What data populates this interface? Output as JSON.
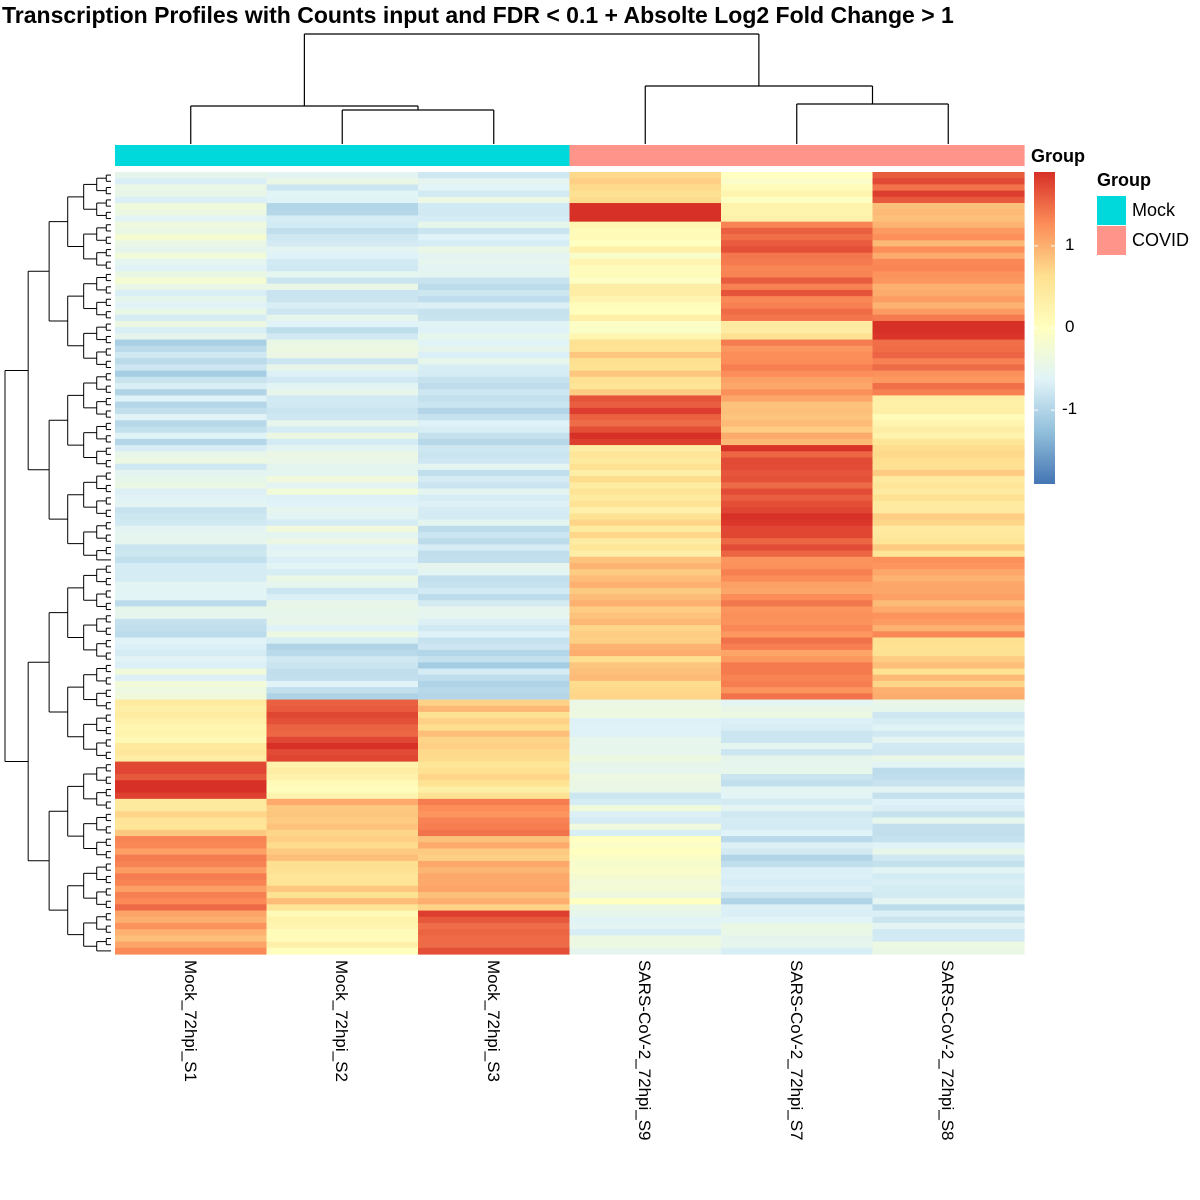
{
  "chart_data": {
    "type": "heatmap",
    "title": "Transcription Profiles with Counts input and FDR < 0.1 + Absolte Log2 Fold Change > 1",
    "columns": [
      "Mock_72hpi_S1",
      "Mock_72hpi_S2",
      "Mock_72hpi_S3",
      "SARS-CoV-2_72hpi_S9",
      "SARS-CoV-2_72hpi_S7",
      "SARS-CoV-2_72hpi_S8"
    ],
    "column_groups": [
      "Mock",
      "Mock",
      "Mock",
      "COVID",
      "COVID",
      "COVID"
    ],
    "annotation_title": "Group",
    "legend": {
      "title": "Group",
      "entries": [
        {
          "label": "Mock",
          "color": "#00D9DC"
        },
        {
          "label": "COVID",
          "color": "#FF948A"
        }
      ]
    },
    "color_scale": {
      "ticks": [
        "1",
        "0",
        "-1"
      ],
      "range": [
        -1.9,
        1.9
      ],
      "colors": [
        "#4575B4",
        "#91BFDB",
        "#E0F3F8",
        "#FFFFBF",
        "#FEE090",
        "#FC8D59",
        "#D73027"
      ]
    },
    "row_blocks": [
      {
        "rows": 5,
        "values": [
          -0.5,
          -0.6,
          -0.6,
          0.8,
          0.0,
          1.6
        ]
      },
      {
        "rows": 3,
        "values": [
          -0.4,
          -0.9,
          -0.6,
          1.8,
          0.3,
          1.0
        ]
      },
      {
        "rows": 10,
        "values": [
          -0.4,
          -0.7,
          -0.6,
          0.1,
          1.5,
          1.1
        ]
      },
      {
        "rows": 6,
        "values": [
          -0.5,
          -0.6,
          -0.8,
          0.2,
          1.5,
          1.2
        ]
      },
      {
        "rows": 3,
        "values": [
          -0.5,
          -0.7,
          -0.5,
          0.0,
          0.6,
          1.9
        ]
      },
      {
        "rows": 9,
        "values": [
          -0.9,
          -0.6,
          -0.7,
          0.6,
          1.2,
          1.4
        ]
      },
      {
        "rows": 8,
        "values": [
          -0.8,
          -0.6,
          -0.8,
          1.7,
          0.9,
          0.3
        ]
      },
      {
        "rows": 18,
        "values": [
          -0.6,
          -0.5,
          -0.7,
          0.5,
          1.7,
          0.6
        ]
      },
      {
        "rows": 13,
        "values": [
          -0.7,
          -0.6,
          -0.7,
          0.9,
          1.3,
          1.1
        ]
      },
      {
        "rows": 10,
        "values": [
          -0.5,
          -0.8,
          -0.9,
          0.8,
          1.3,
          0.8
        ]
      },
      {
        "rows": 10,
        "values": [
          0.3,
          1.7,
          0.8,
          -0.5,
          -0.6,
          -0.6
        ]
      },
      {
        "rows": 6,
        "values": [
          1.8,
          0.2,
          0.5,
          -0.6,
          -0.7,
          -0.7
        ]
      },
      {
        "rows": 6,
        "values": [
          0.6,
          0.9,
          1.3,
          -0.5,
          -0.6,
          -0.7
        ]
      },
      {
        "rows": 12,
        "values": [
          1.3,
          0.7,
          0.9,
          -0.2,
          -0.8,
          -0.7
        ]
      },
      {
        "rows": 7,
        "values": [
          1.1,
          0.2,
          1.6,
          -0.6,
          -0.5,
          -0.6
        ]
      }
    ]
  }
}
